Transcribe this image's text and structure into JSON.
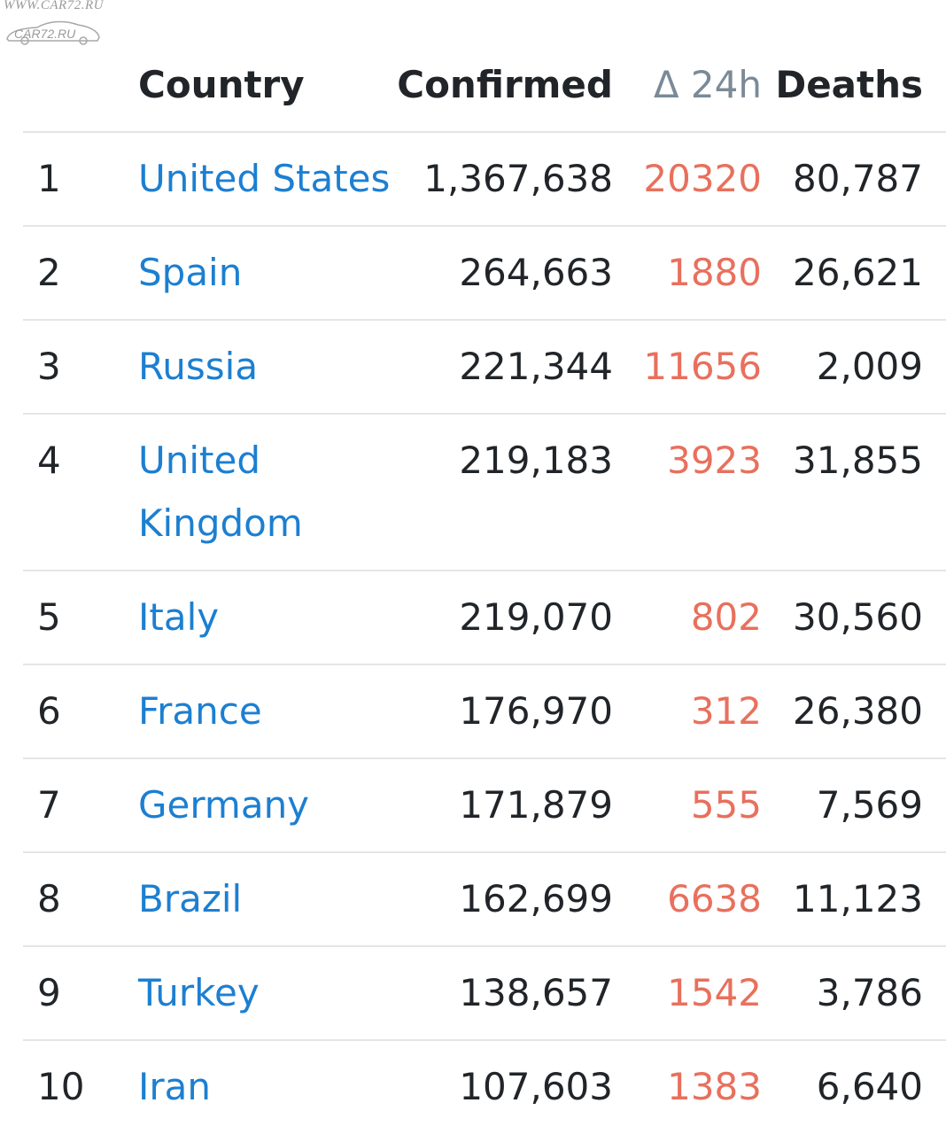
{
  "watermark": {
    "url": "WWW.CAR72.RU",
    "brand": "CAR72.RU"
  },
  "colors": {
    "link": "#1c7fd1",
    "delta": "#e8705d",
    "header_delta": "#7b8a96",
    "divider": "#e3e6e9"
  },
  "table": {
    "headers": {
      "country": "Country",
      "confirmed": "Confirmed",
      "delta": "Δ 24h",
      "deaths": "Deaths"
    },
    "rows": [
      {
        "rank": "1",
        "country": "United States",
        "confirmed": "1,367,638",
        "delta": "20320",
        "deaths": "80,787"
      },
      {
        "rank": "2",
        "country": "Spain",
        "confirmed": "264,663",
        "delta": "1880",
        "deaths": "26,621"
      },
      {
        "rank": "3",
        "country": "Russia",
        "confirmed": "221,344",
        "delta": "11656",
        "deaths": "2,009"
      },
      {
        "rank": "4",
        "country": "United Kingdom",
        "confirmed": "219,183",
        "delta": "3923",
        "deaths": "31,855"
      },
      {
        "rank": "5",
        "country": "Italy",
        "confirmed": "219,070",
        "delta": "802",
        "deaths": "30,560"
      },
      {
        "rank": "6",
        "country": "France",
        "confirmed": "176,970",
        "delta": "312",
        "deaths": "26,380"
      },
      {
        "rank": "7",
        "country": "Germany",
        "confirmed": "171,879",
        "delta": "555",
        "deaths": "7,569"
      },
      {
        "rank": "8",
        "country": "Brazil",
        "confirmed": "162,699",
        "delta": "6638",
        "deaths": "11,123"
      },
      {
        "rank": "9",
        "country": "Turkey",
        "confirmed": "138,657",
        "delta": "1542",
        "deaths": "3,786"
      },
      {
        "rank": "10",
        "country": "Iran",
        "confirmed": "107,603",
        "delta": "1383",
        "deaths": "6,640"
      }
    ]
  }
}
